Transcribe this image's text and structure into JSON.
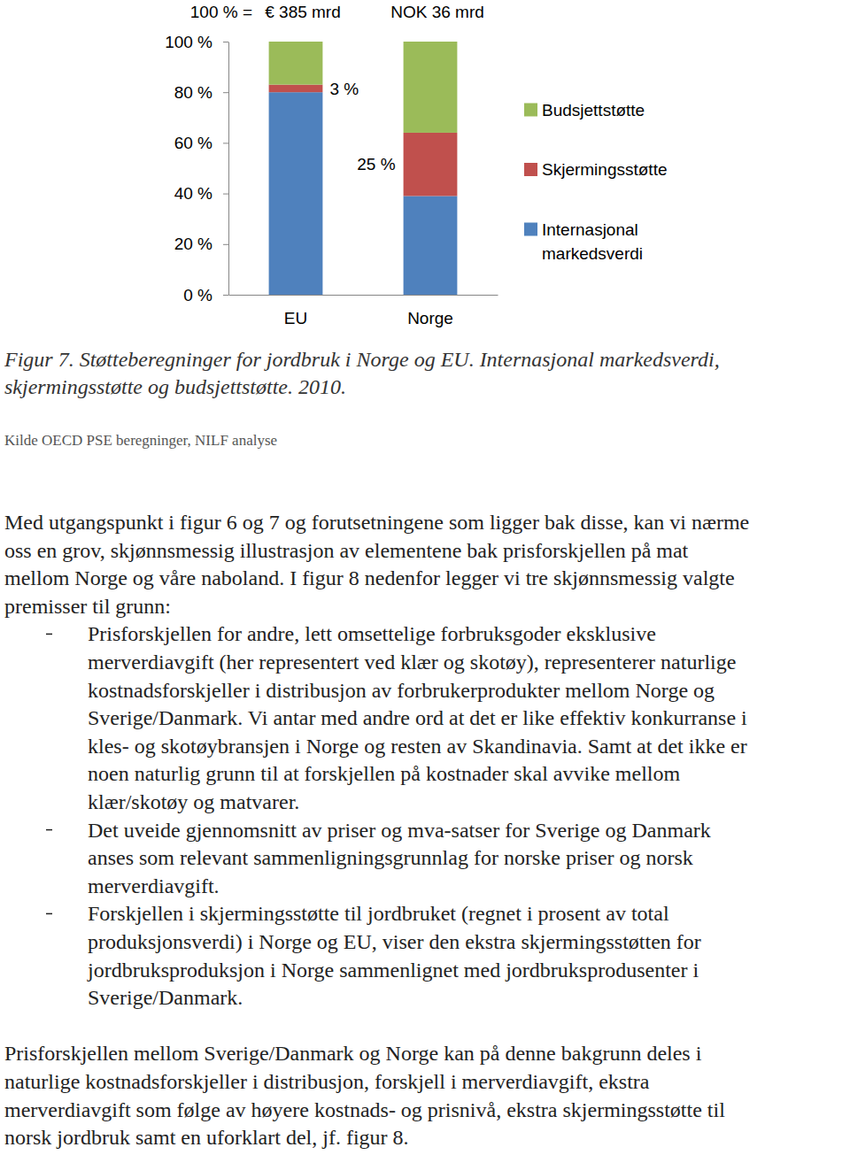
{
  "chart_data": {
    "type": "bar",
    "stacked": true,
    "categories": [
      "EU",
      "Norge"
    ],
    "series": [
      {
        "name": "Internasjonal markedsverdi",
        "color": "#4f81bd",
        "values": [
          80,
          39
        ]
      },
      {
        "name": "Skjermingsstøtte",
        "color": "#c0504d",
        "values": [
          3,
          25
        ],
        "data_labels": true,
        "value_labels": [
          "3 %",
          "25 %"
        ]
      },
      {
        "name": "Budsjettstøtte",
        "color": "#9bbb59",
        "values": [
          17,
          36
        ]
      }
    ],
    "ylim": [
      0,
      100
    ],
    "yticks": [
      {
        "value": 0,
        "label": "0 %"
      },
      {
        "value": 20,
        "label": "20 %"
      },
      {
        "value": 40,
        "label": "40 %"
      },
      {
        "value": 60,
        "label": "60 %"
      },
      {
        "value": 80,
        "label": "80 %"
      },
      {
        "value": 100,
        "label": "100 %"
      }
    ],
    "annotations": [
      "100 % =",
      "€ 385 mrd",
      "NOK 36 mrd"
    ],
    "grid": false,
    "legend": "right"
  },
  "document": {
    "caption": [
      "Figur 7. Støtteberegninger for jordbruk i Norge og EU. Internasjonal markedsverdi,",
      "skjermingsstøtte og budsjettstøtte. 2010."
    ],
    "source": "Kilde OECD PSE beregninger, NILF analyse",
    "intro": [
      "Med utgangspunkt i figur 6 og 7 og forutsetningene som ligger bak disse, kan vi nærme",
      "oss en grov, skjønnsmessig illustrasjon av elementene bak prisforskjellen på mat",
      "mellom Norge og våre naboland. I figur 8 nedenfor legger vi tre skjønnsmessig valgte",
      "premisser til grunn:"
    ],
    "premises": [
      [
        "Prisforskjellen for andre, lett omsettelige forbruksgoder eksklusive",
        "merverdiavgift (her representert ved klær og skotøy), representerer naturlige",
        "kostnadsforskjeller i distribusjon av forbrukerprodukter mellom Norge og",
        "Sverige/Danmark. Vi antar med andre ord at det er like effektiv konkurranse i",
        "kles- og skotøybransjen i Norge og resten av Skandinavia. Samt at det ikke er",
        "noen naturlig grunn til at forskjellen på kostnader skal avvike mellom",
        "klær/skotøy og matvarer."
      ],
      [
        "Det uveide gjennomsnitt av priser og mva-satser for Sverige og Danmark",
        "anses som relevant sammenligningsgrunnlag for norske priser og norsk",
        "merverdiavgift."
      ],
      [
        "Forskjellen i skjermingsstøtte til jordbruket (regnet i prosent av total",
        "produksjonsverdi) i Norge og EU, viser den ekstra skjermingsstøtten for",
        "jordbruksproduksjon i Norge sammenlignet med jordbruksprodusenter i",
        "Sverige/Danmark."
      ]
    ],
    "conclusion": [
      "Prisforskjellen mellom Sverige/Danmark og Norge kan på denne bakgrunn deles i",
      "naturlige kostnadsforskjeller i distribusjon, forskjell i merverdiavgift, ekstra",
      "merverdiavgift som følge av høyere kostnads- og prisnivå, ekstra skjermingsstøtte til",
      "norsk jordbruk samt en uforklart del, jf. figur 8."
    ]
  }
}
